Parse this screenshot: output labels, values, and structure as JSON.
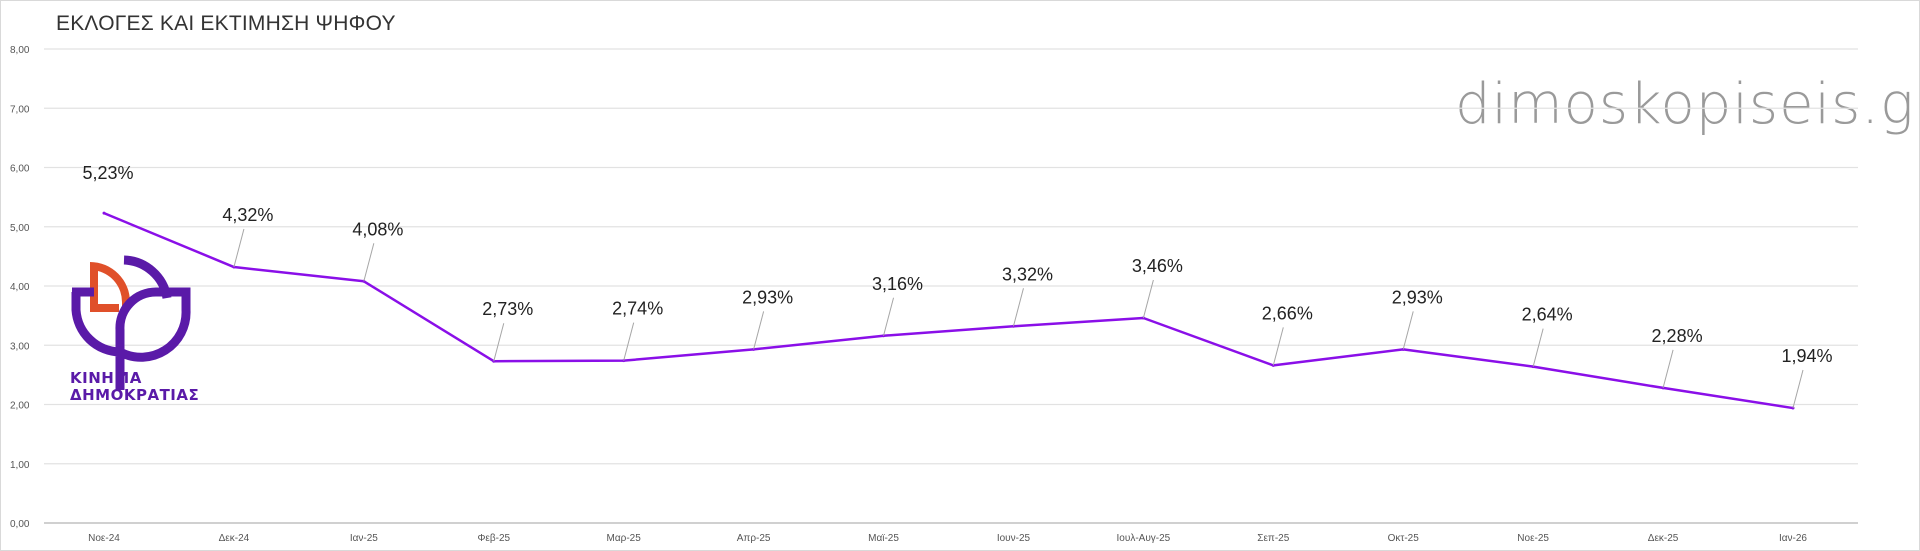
{
  "chart_data": {
    "type": "line",
    "title": "ΕΚΛΟΓΕΣ ΚΑΙ ΕΚΤΙΜΗΣΗ  ΨΗΦΟΥ",
    "xlabel": "",
    "ylabel": "",
    "ylim": [
      0,
      8
    ],
    "yticks": [
      "0,00",
      "1,00",
      "2,00",
      "3,00",
      "4,00",
      "5,00",
      "6,00",
      "7,00",
      "8,00"
    ],
    "grid": true,
    "categories": [
      "Νοε-24",
      "Δεκ-24",
      "Ιαν-25",
      "Φεβ-25",
      "Μαρ-25",
      "Απρ-25",
      "Μαϊ-25",
      "Ιουν-25",
      "Ιουλ-Αυγ-25",
      "Σεπ-25",
      "Οκτ-25",
      "Νοε-25",
      "Δεκ-25",
      "Ιαν-26"
    ],
    "series": [
      {
        "name": "ΚΙΝΗΜΑ ΔΗΜΟΚΡΑΤΙΑΣ",
        "color": "#8a0fe8",
        "values": [
          5.23,
          4.32,
          4.08,
          2.73,
          2.74,
          2.93,
          3.16,
          3.32,
          3.46,
          2.66,
          2.93,
          2.64,
          2.28,
          1.94
        ],
        "labels": [
          "5,23%",
          "4,32%",
          "4,08%",
          "2,73%",
          "2,74%",
          "2,93%",
          "3,16%",
          "3,32%",
          "3,46%",
          "2,66%",
          "2,93%",
          "2,64%",
          "2,28%",
          "1,94%"
        ]
      }
    ]
  },
  "watermark": "dimoskopiseis.gr",
  "logo": {
    "line1": "ΚΙΝΗΜΑ",
    "line2": "ΔΗΜΟΚΡΑΤΙΑΣ",
    "purple": "#5a1aa8",
    "orange": "#e0502a"
  }
}
